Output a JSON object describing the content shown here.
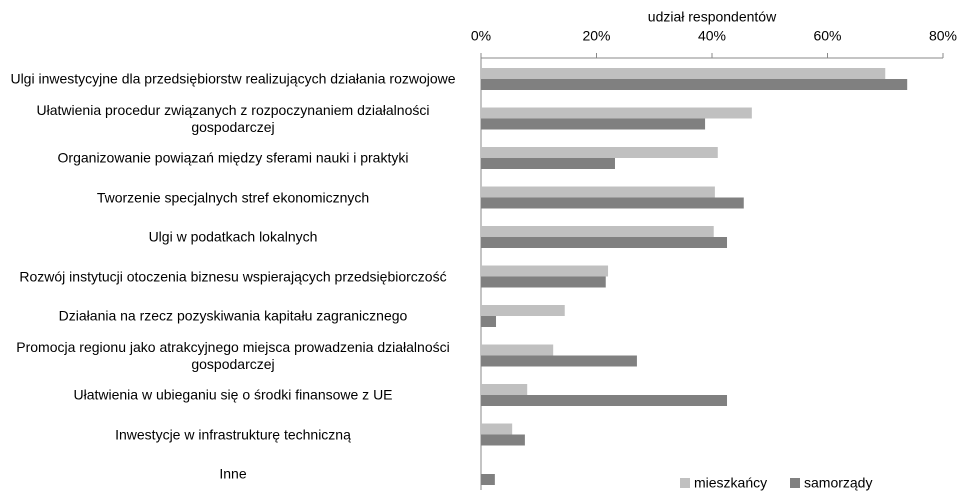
{
  "chart_data": {
    "type": "hbar",
    "x_label": "udział respondentów",
    "categories": [
      "Ulgi inwestycyjne dla przedsiębiorstw realizujących działania rozwojowe",
      "Ułatwienia procedur związanych z rozpoczynaniem działalności gospodarczej",
      "Organizowanie powiązań między sferami nauki i praktyki",
      "Tworzenie specjalnych stref ekonomicznych",
      "Ulgi w podatkach lokalnych",
      "Rozwój instytucji otoczenia biznesu wspierających przedsiębiorczość",
      "Działania na rzecz pozyskiwania kapitału zagranicznego",
      "Promocja regionu jako atrakcyjnego miejsca prowadzenia działalności gospodarczej",
      "Ułatwienia w ubieganiu się o środki finansowe z UE",
      "Inwestycje w infrastrukturę techniczną",
      "Inne"
    ],
    "series": [
      {
        "name": "mieszkańcy",
        "color": "#c0c0c0",
        "values": [
          70.0,
          46.9,
          41.0,
          40.5,
          40.3,
          22.0,
          14.5,
          12.5,
          8.0,
          5.4,
          0
        ]
      },
      {
        "name": "samorządy",
        "color": "#808080",
        "values": [
          73.8,
          38.8,
          23.2,
          45.5,
          42.6,
          21.6,
          2.6,
          27.0,
          42.6,
          7.6,
          2.4
        ]
      }
    ],
    "xlim": [
      0,
      80
    ],
    "xticks": [
      {
        "value": 0,
        "label": "0%"
      },
      {
        "value": 20,
        "label": "20%"
      },
      {
        "value": 40,
        "label": "40%"
      },
      {
        "value": 60,
        "label": "60%"
      },
      {
        "value": 80,
        "label": "80%"
      }
    ],
    "grid": false,
    "legend": "bottom-right"
  }
}
